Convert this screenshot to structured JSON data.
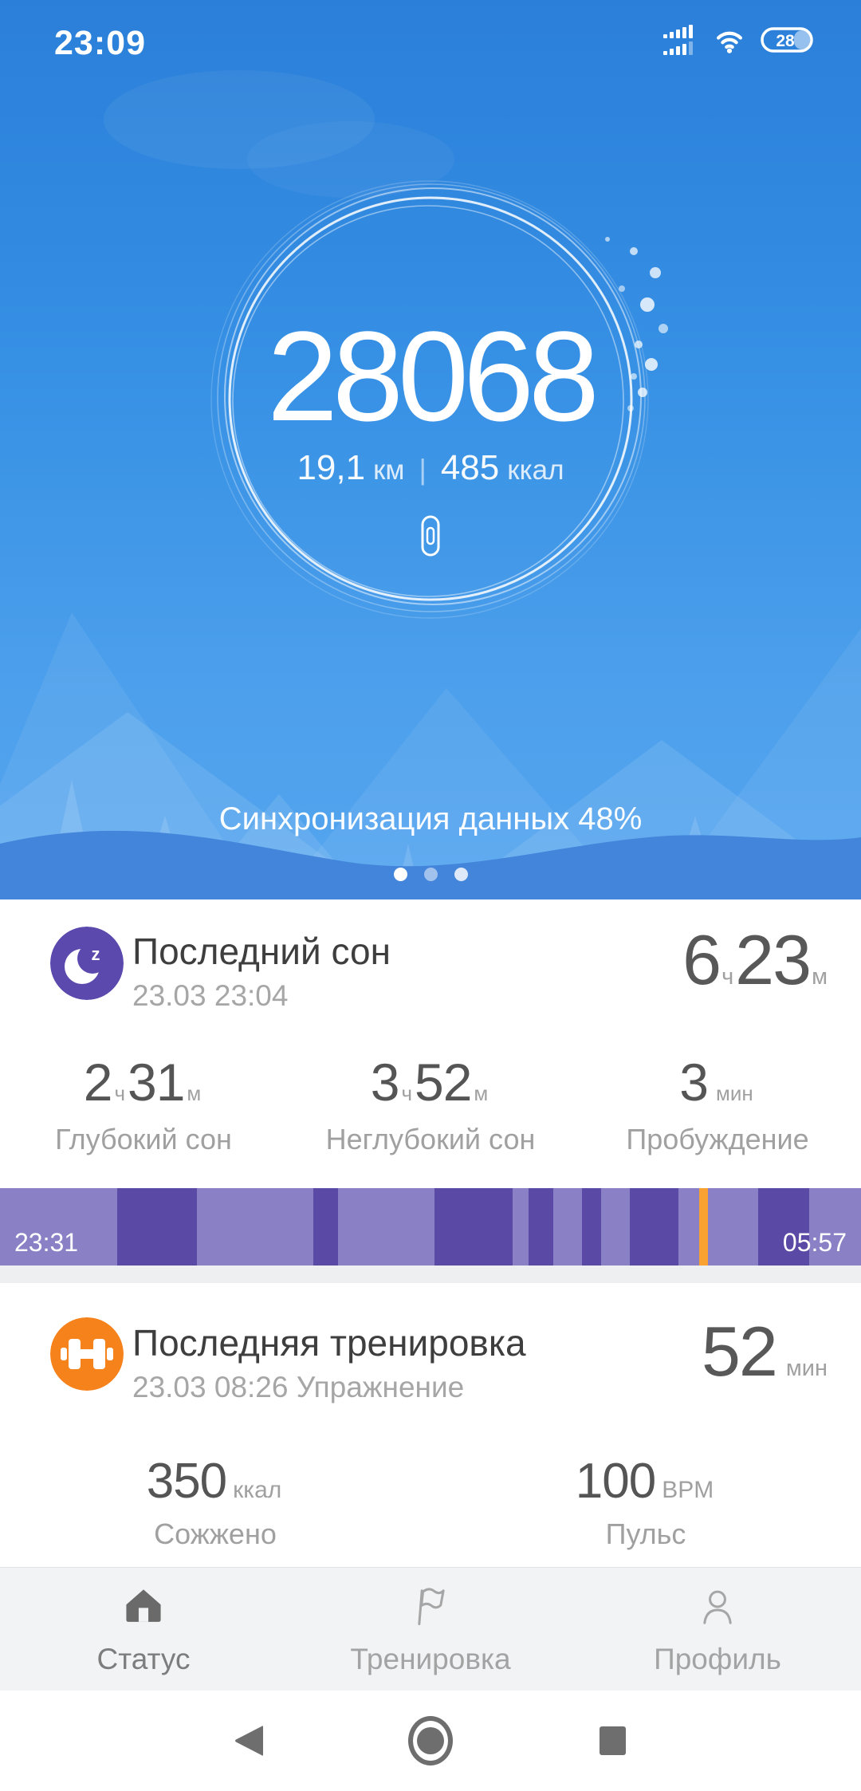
{
  "status_bar": {
    "time": "23:09",
    "battery_percent": "28",
    "icons": [
      "dual-signal-icon",
      "wifi-icon",
      "battery-icon"
    ]
  },
  "header": {
    "steps": "28068",
    "distance": {
      "value": "19,1",
      "unit": "км"
    },
    "separator": "|",
    "calories": {
      "value": "485",
      "unit": "ккал"
    },
    "sync_status": "Синхронизация данных 48%",
    "device_icon": "mi-band-icon",
    "pager_dot_count": 3,
    "active_dot_index": 0
  },
  "sleep_card": {
    "icon": "sleep-moon-icon",
    "title": "Последний сон",
    "timestamp": "23.03 23:04",
    "duration": {
      "hours": "6",
      "hours_unit": "ч",
      "minutes": "23",
      "minutes_unit": "м"
    },
    "stats": [
      {
        "hours": "2",
        "hours_unit": "ч",
        "minutes": "31",
        "minutes_unit": "м",
        "label": "Глубокий сон"
      },
      {
        "hours": "3",
        "hours_unit": "ч",
        "minutes": "52",
        "minutes_unit": "м",
        "label": "Неглубокий сон"
      },
      {
        "value": "3",
        "unit": "мин",
        "label": "Пробуждение"
      }
    ],
    "timeline": {
      "start": "23:31",
      "end": "05:57",
      "stage_colors": {
        "light": "#8A80C5",
        "deep": "#5A4AA5",
        "awake": "#F9A232"
      },
      "segments": [
        {
          "stage": "light",
          "pct": 13.6
        },
        {
          "stage": "deep",
          "pct": 9.3
        },
        {
          "stage": "light",
          "pct": 13.5
        },
        {
          "stage": "deep",
          "pct": 2.9
        },
        {
          "stage": "light",
          "pct": 11.2
        },
        {
          "stage": "deep",
          "pct": 9.0
        },
        {
          "stage": "light",
          "pct": 1.9
        },
        {
          "stage": "deep",
          "pct": 2.9
        },
        {
          "stage": "light",
          "pct": 3.3
        },
        {
          "stage": "deep",
          "pct": 2.2
        },
        {
          "stage": "light",
          "pct": 3.4
        },
        {
          "stage": "deep",
          "pct": 5.6
        },
        {
          "stage": "light",
          "pct": 2.4
        },
        {
          "stage": "awake",
          "pct": 1.0
        },
        {
          "stage": "light",
          "pct": 5.9
        },
        {
          "stage": "deep",
          "pct": 5.9
        },
        {
          "stage": "light",
          "pct": 6.0
        }
      ]
    }
  },
  "workout_card": {
    "icon": "dumbbell-icon",
    "title": "Последняя тренировка",
    "timestamp": "23.03 08:26 Упражнение",
    "duration": {
      "value": "52",
      "unit": "мин"
    },
    "stats": [
      {
        "value": "350",
        "unit": "ккал",
        "label": "Сожжено"
      },
      {
        "value": "100",
        "unit": "BPM",
        "label": "Пульс"
      }
    ]
  },
  "tab_bar": {
    "items": [
      {
        "label": "Статус",
        "icon": "home-icon",
        "active": true
      },
      {
        "label": "Тренировка",
        "icon": "flag-icon",
        "active": false
      },
      {
        "label": "Профиль",
        "icon": "person-icon",
        "active": false
      }
    ]
  },
  "android_nav": {
    "items": [
      "back-icon",
      "home-circle-icon",
      "recents-icon"
    ]
  },
  "colors": {
    "header_gradient_top": "#2B7FD9",
    "header_gradient_bottom": "#55A5EF",
    "wave_band": "#4285DB",
    "sleep_icon_bg": "#5B49AE",
    "workout_icon_bg": "#F6821C",
    "sleep_deep": "#5A4AA5",
    "sleep_light": "#8A80C5",
    "sleep_awake": "#F9A232",
    "title_text": "#3E3E3E",
    "secondary_text": "#A0A0A0",
    "value_text": "#565656",
    "tabbar_bg": "#F2F3F5"
  }
}
